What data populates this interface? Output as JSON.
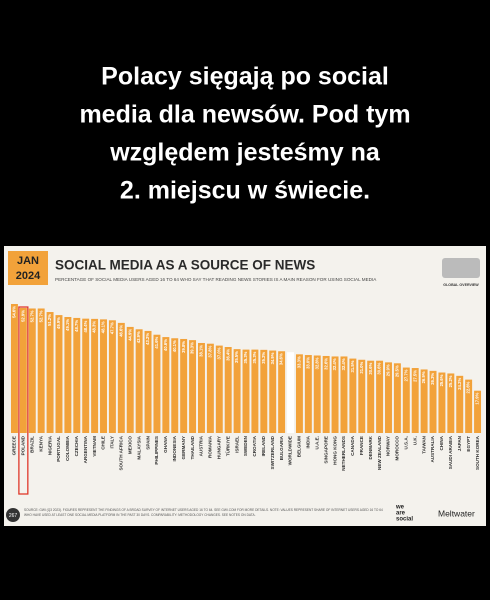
{
  "header": {
    "lines": [
      "Polacy sięgają po social",
      "media dla newsów. Pod tym",
      "względem jesteśmy na",
      "2. miejscu w świecie."
    ]
  },
  "chart_data": {
    "type": "bar",
    "badge": [
      "JAN",
      "2024"
    ],
    "title": "SOCIAL MEDIA AS A SOURCE OF NEWS",
    "subtitle": "PERCENTAGE OF SOCIAL MEDIA USERS AGED 16 TO 64 WHO SAY THAT READING NEWS STORIES IS A MAIN REASON FOR USING SOCIAL MEDIA",
    "corner_label": "GLOBAL OVERVIEW",
    "categories": [
      "GREECE",
      "POLAND",
      "BRAZIL",
      "KENYA",
      "NIGERIA",
      "PORTUGAL",
      "COLOMBIA",
      "CZECHIA",
      "ARGENTINA",
      "VIETNAM",
      "CHILE",
      "ITALY",
      "SOUTH AFRICA",
      "MEXICO",
      "MALAYSIA",
      "SPAIN",
      "PHILIPPINES",
      "GHANA",
      "INDONESIA",
      "GERMANY",
      "THAILAND",
      "AUSTRIA",
      "ROMANIA",
      "HUNGARY",
      "TÜRKIYE",
      "ISRAEL",
      "SWEDEN",
      "CROATIA",
      "IRELAND",
      "SWITZERLAND",
      "BULGARIA",
      "WORLDWIDE",
      "BELGIUM",
      "INDIA",
      "U.A.E.",
      "SINGAPORE",
      "HONG KONG",
      "NETHERLANDS",
      "CANADA",
      "FRANCE",
      "DENMARK",
      "NEW ZEALAND",
      "NORWAY",
      "MOROCCO",
      "U.S.A.",
      "U.K.",
      "TAIWAN",
      "AUSTRALIA",
      "CHINA",
      "SAUDI ARABIA",
      "JAPAN",
      "EGYPT",
      "SOUTH KOREA"
    ],
    "values": [
      54.6,
      52.9,
      52.7,
      52.7,
      51.2,
      49.9,
      49.1,
      48.7,
      48.4,
      48.3,
      48.1,
      47.7,
      46.6,
      44.9,
      43.9,
      43.2,
      41.6,
      40.6,
      40.1,
      39.8,
      39.3,
      38.1,
      37.8,
      37.0,
      36.4,
      35.5,
      35.3,
      35.3,
      35.2,
      34.9,
      34.6,
      34.2,
      33.3,
      33.0,
      32.8,
      32.6,
      32.4,
      32.4,
      31.5,
      31.0,
      30.6,
      30.6,
      29.9,
      29.5,
      27.7,
      27.5,
      26.9,
      26.3,
      25.6,
      25.2,
      24.2,
      22.6,
      17.9
    ],
    "value_labels": [
      "54.6%",
      "52.9%",
      "52.7%",
      "52.7%",
      "51.2%",
      "49.9%",
      "49.1%",
      "48.7%",
      "48.4%",
      "48.3%",
      "48.1%",
      "47.7%",
      "46.6%",
      "44.9%",
      "43.9%",
      "43.2%",
      "41.6%",
      "40.6%",
      "40.1%",
      "39.8%",
      "39.3%",
      "38.1%",
      "37.8%",
      "37.0%",
      "36.4%",
      "35.5%",
      "35.3%",
      "35.3%",
      "35.2%",
      "34.9%",
      "34.6%",
      "34.2%",
      "33.3%",
      "33.0%",
      "32.8%",
      "32.6%",
      "32.4%",
      "32.4%",
      "31.5%",
      "31.0%",
      "30.6%",
      "30.6%",
      "29.9%",
      "29.5%",
      "27.7%",
      "27.5%",
      "26.9%",
      "26.3%",
      "25.6%",
      "25.2%",
      "24.2%",
      "22.6%",
      "17.9%"
    ],
    "color": "#f2a23a",
    "highlight_category": "WORLDWIDE",
    "highlight_color": "#ffffff",
    "outlined_category": "POLAND",
    "outline_color": "#e0392b",
    "page_number": "267",
    "source": [
      "SOURCE: GWI (Q3 2023). FIGURES REPRESENT THE FINDINGS OF A BROAD SURVEY OF INTERNET USERS AGED 16 TO 64. SEE GWI.COM FOR MORE DETAILS. NOTE: VALUES REPRESENT SHARE OF INTERNET USERS AGED 16 TO 64",
      "WHO HAVE USED AT LEAST ONE SOCIAL MEDIA PLATFORM IN THE PAST 30 DAYS. COMPARABILITY: METHODOLOGY CHANGES. SEE NOTES ON DATA."
    ],
    "brand_left": [
      "we",
      "are",
      "social"
    ],
    "brand_right": "Meltwater"
  }
}
